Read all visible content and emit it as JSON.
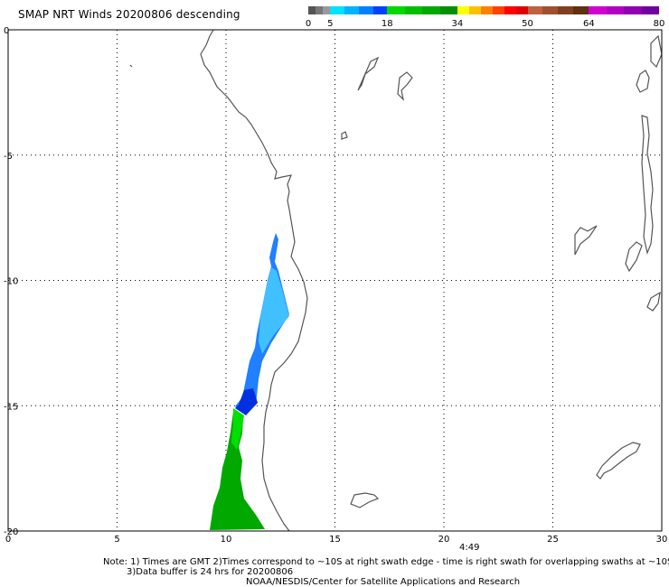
{
  "title": "SMAP NRT Winds  20200806 descending",
  "colorbar": {
    "labels": [
      "0",
      "5",
      "18",
      "34",
      "50",
      "64",
      "80"
    ],
    "segments": [
      {
        "from": 0,
        "to": 5,
        "colors": [
          "#555555",
          "#777777",
          "#999999"
        ]
      },
      {
        "from": 5,
        "to": 18,
        "colors": [
          "#00e0ff",
          "#00b4ff",
          "#0080ff",
          "#0040ff"
        ]
      },
      {
        "from": 18,
        "to": 34,
        "colors": [
          "#00d800",
          "#00c000",
          "#00a800",
          "#009000"
        ]
      },
      {
        "from": 34,
        "to": 50,
        "colors": [
          "#ffff00",
          "#ffc000",
          "#ff8000",
          "#ff4000",
          "#ff0000",
          "#e00000"
        ]
      },
      {
        "from": 50,
        "to": 64,
        "colors": [
          "#c06040",
          "#a05030",
          "#804020",
          "#603010"
        ]
      },
      {
        "from": 64,
        "to": 80,
        "colors": [
          "#d000d0",
          "#b000c0",
          "#9000b0",
          "#7000a0"
        ]
      }
    ]
  },
  "map": {
    "x_ticks": [
      "0",
      "5",
      "10",
      "15",
      "20",
      "25",
      "30"
    ],
    "y_ticks": [
      "0",
      "-5",
      "-10",
      "-15",
      "-20"
    ],
    "lon_range": [
      0,
      30
    ],
    "lat_range": [
      -20,
      0
    ]
  },
  "time_label": "4:49",
  "notes": [
    "Note: 1) Times are GMT 2)Times correspond to ~10S at right swath edge - time is right swath for overlapping swaths at ~10S",
    "3)Data buffer is 24 hrs for 20200806",
    "NOAA/NESDIS/Center for Satellite Applications and Research"
  ],
  "colors": {
    "coast": "#555555",
    "grid": "#000000"
  }
}
